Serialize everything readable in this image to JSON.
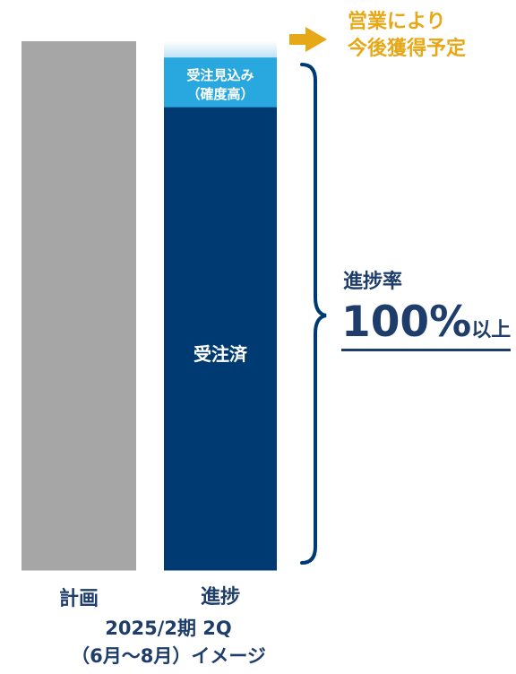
{
  "chart_data": {
    "type": "bar",
    "stacked": true,
    "ylim": [
      0,
      100
    ],
    "categories": [
      "計画",
      "進捗"
    ],
    "segments": [
      {
        "category": "計画",
        "label": "",
        "value": 100,
        "color": "#a6a6a6"
      },
      {
        "category": "進捗",
        "label": "受注済",
        "value": 87.6,
        "color": "#003a73"
      },
      {
        "category": "進捗",
        "label": "受注見込み（確度高）",
        "label_line1": "受注見込み",
        "label_line2": "（確度高）",
        "value": 9.4,
        "color": "#29a8e0"
      },
      {
        "category": "進捗",
        "label": "",
        "value": 3.0,
        "color": "#d9eef9",
        "gradient": true
      }
    ],
    "annotations": {
      "arrow_note_line1": "営業により",
      "arrow_note_line2": "今後獲得予定",
      "progress_label": "進捗率",
      "progress_value": "100%",
      "progress_suffix": "以上"
    },
    "caption_line1": "2025/2期 2Q",
    "caption_line2": "（6月～8月）イメージ"
  },
  "colors": {
    "navy": "#003a73",
    "light_blue": "#29a8e0",
    "gray": "#a6a6a6",
    "gold": "#e6a817",
    "text_navy": "#1f3d6b"
  }
}
